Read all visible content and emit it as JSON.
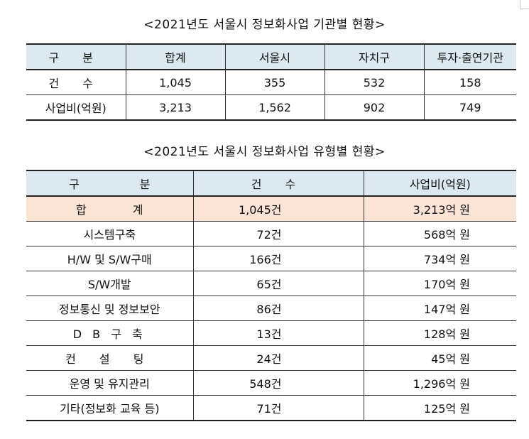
{
  "table1": {
    "title": "<2021년도 서울시 정보화사업 기관별 현황>",
    "headers": [
      "구 분",
      "합계",
      "서울시",
      "자치구",
      "투자·출연기관"
    ],
    "rows": [
      [
        "건 수",
        "1,045",
        "355",
        "532",
        "158"
      ],
      [
        "사업비(억원)",
        "3,213",
        "1,562",
        "902",
        "749"
      ]
    ]
  },
  "table2": {
    "title": "<2021년도 서울시 정보화사업 유형별 현황>",
    "headers": [
      "구 분",
      "건 수",
      "사업비(억원)"
    ],
    "rows": [
      [
        "합 계",
        "1,045건",
        "3,213억 원"
      ],
      [
        "시스템구축",
        "72건",
        "568억 원"
      ],
      [
        "H/W 및 S/W구매",
        "166건",
        "734억 원"
      ],
      [
        "S/W개발",
        "65건",
        "170억 원"
      ],
      [
        "정보통신 및 정보보안",
        "86건",
        "147억 원"
      ],
      [
        "D B 구 축",
        "13건",
        "128억 원"
      ],
      [
        "컨 설 팅",
        "24건",
        "45억 원"
      ],
      [
        "운영 및 유지관리",
        "548건",
        "1,296억 원"
      ],
      [
        "기타(정보화 교육 등)",
        "71건",
        "125억 원"
      ]
    ]
  }
}
